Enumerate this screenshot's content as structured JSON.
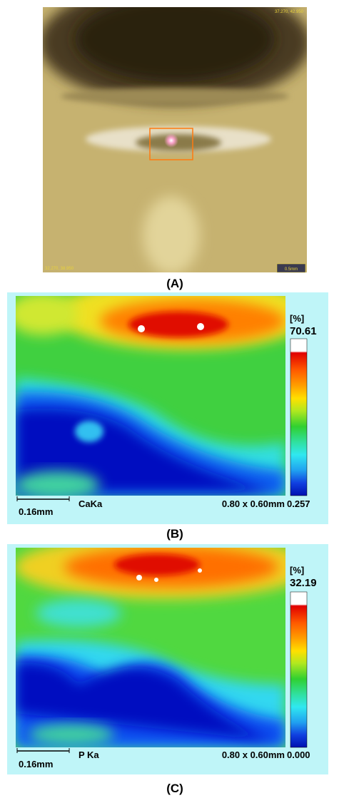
{
  "panel_a": {
    "label": "(A)",
    "coord_top_right": "37.270, 42.950",
    "coord_bottom_left": "32.270, 38.950",
    "scale_bar": "0.5mm"
  },
  "panel_b": {
    "label": "(B)",
    "unit": "[%]",
    "max": "70.61",
    "min": "0.257",
    "scale_bar": "0.16mm",
    "element": "CaKa",
    "area": "0.80 x 0.60mm"
  },
  "panel_c": {
    "label": "(C)",
    "unit": "[%]",
    "max": "32.19",
    "min": "0.000",
    "scale_bar": "0.16mm",
    "element": "P Ka",
    "area": "0.80 x 0.60mm"
  }
}
